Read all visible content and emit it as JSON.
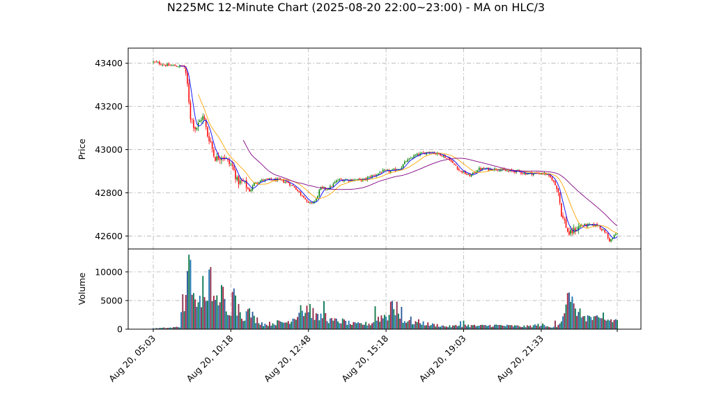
{
  "chart_data": {
    "type": "candlestick",
    "title": "N225MC 12-Minute Chart (2025-08-20 22:00~23:00) - MA on HLC/3",
    "price_panel": {
      "ylabel": "Price",
      "ylim": [
        42540,
        43470
      ],
      "yticks": [
        42600,
        42800,
        43000,
        43200,
        43400
      ],
      "grid": true
    },
    "volume_panel": {
      "ylabel": "Volume",
      "ylim": [
        0,
        14000
      ],
      "yticks": [
        0,
        5000,
        10000
      ],
      "grid": true
    },
    "xaxis": {
      "bar_count": 300,
      "tick_labels": [
        {
          "index": 0,
          "label": "Aug 20, 05:03"
        },
        {
          "index": 50,
          "label": "Aug 20, 10:18"
        },
        {
          "index": 100,
          "label": "Aug 20, 12:48"
        },
        {
          "index": 150,
          "label": "Aug 20, 15:18"
        },
        {
          "index": 200,
          "label": "Aug 20, 19:03"
        },
        {
          "index": 250,
          "label": "Aug 20, 21:33"
        }
      ]
    },
    "up_color": "#008000",
    "down_color": "#ff0000",
    "price_anchors": [
      [
        0,
        43405
      ],
      [
        10,
        43390
      ],
      [
        20,
        43385
      ],
      [
        22,
        43300
      ],
      [
        24,
        43150
      ],
      [
        27,
        43100
      ],
      [
        32,
        43150
      ],
      [
        36,
        43050
      ],
      [
        40,
        42960
      ],
      [
        45,
        42970
      ],
      [
        50,
        42930
      ],
      [
        55,
        42850
      ],
      [
        58,
        42850
      ],
      [
        62,
        42810
      ],
      [
        66,
        42850
      ],
      [
        72,
        42860
      ],
      [
        80,
        42860
      ],
      [
        86,
        42850
      ],
      [
        90,
        42830
      ],
      [
        96,
        42790
      ],
      [
        100,
        42750
      ],
      [
        104,
        42760
      ],
      [
        108,
        42820
      ],
      [
        112,
        42820
      ],
      [
        120,
        42860
      ],
      [
        128,
        42860
      ],
      [
        135,
        42860
      ],
      [
        142,
        42880
      ],
      [
        148,
        42900
      ],
      [
        152,
        42900
      ],
      [
        158,
        42910
      ],
      [
        164,
        42950
      ],
      [
        168,
        42970
      ],
      [
        172,
        42980
      ],
      [
        178,
        42990
      ],
      [
        184,
        42980
      ],
      [
        190,
        42960
      ],
      [
        194,
        42930
      ],
      [
        198,
        42900
      ],
      [
        204,
        42880
      ],
      [
        210,
        42910
      ],
      [
        216,
        42910
      ],
      [
        222,
        42910
      ],
      [
        228,
        42900
      ],
      [
        234,
        42900
      ],
      [
        240,
        42890
      ],
      [
        246,
        42890
      ],
      [
        252,
        42890
      ],
      [
        256,
        42870
      ],
      [
        260,
        42830
      ],
      [
        264,
        42680
      ],
      [
        268,
        42610
      ],
      [
        272,
        42630
      ],
      [
        276,
        42650
      ],
      [
        280,
        42650
      ],
      [
        286,
        42650
      ],
      [
        291,
        42620
      ],
      [
        294,
        42580
      ],
      [
        299,
        42610
      ]
    ],
    "volume_anchors": [
      [
        0,
        150
      ],
      [
        10,
        250
      ],
      [
        17,
        400
      ],
      [
        19,
        6100
      ],
      [
        21,
        4800
      ],
      [
        23,
        11000
      ],
      [
        25,
        6000
      ],
      [
        28,
        5200
      ],
      [
        30,
        4800
      ],
      [
        33,
        8000
      ],
      [
        35,
        5000
      ],
      [
        37,
        8500
      ],
      [
        39,
        5000
      ],
      [
        42,
        4800
      ],
      [
        44,
        7200
      ],
      [
        46,
        4500
      ],
      [
        50,
        4000
      ],
      [
        52,
        6500
      ],
      [
        54,
        3500
      ],
      [
        58,
        2500
      ],
      [
        62,
        3000
      ],
      [
        66,
        1800
      ],
      [
        72,
        900
      ],
      [
        80,
        1200
      ],
      [
        86,
        1300
      ],
      [
        90,
        2000
      ],
      [
        95,
        3500
      ],
      [
        100,
        2800
      ],
      [
        103,
        3000
      ],
      [
        106,
        2000
      ],
      [
        110,
        2500
      ],
      [
        115,
        1500
      ],
      [
        120,
        1500
      ],
      [
        130,
        900
      ],
      [
        140,
        1000
      ],
      [
        145,
        2000
      ],
      [
        150,
        2500
      ],
      [
        154,
        2200
      ],
      [
        157,
        3000
      ],
      [
        160,
        1800
      ],
      [
        165,
        1200
      ],
      [
        170,
        1300
      ],
      [
        180,
        800
      ],
      [
        190,
        500
      ],
      [
        200,
        700
      ],
      [
        210,
        600
      ],
      [
        220,
        700
      ],
      [
        230,
        600
      ],
      [
        240,
        500
      ],
      [
        250,
        800
      ],
      [
        255,
        400
      ],
      [
        260,
        600
      ],
      [
        264,
        2000
      ],
      [
        268,
        4000
      ],
      [
        272,
        3800
      ],
      [
        276,
        2500
      ],
      [
        280,
        2200
      ],
      [
        285,
        1800
      ],
      [
        290,
        1700
      ],
      [
        299,
        1600
      ]
    ],
    "volume_spikes": [
      [
        19,
        6100
      ],
      [
        23,
        13000
      ],
      [
        24,
        12100
      ],
      [
        25,
        6000
      ],
      [
        27,
        5200
      ],
      [
        29,
        4700
      ],
      [
        32,
        9300
      ],
      [
        34,
        4900
      ],
      [
        36,
        10400
      ],
      [
        38,
        4900
      ],
      [
        40,
        5100
      ],
      [
        43,
        4700
      ],
      [
        44,
        7700
      ],
      [
        45,
        7400
      ],
      [
        51,
        6500
      ],
      [
        52,
        7100
      ],
      [
        55,
        4400
      ],
      [
        61,
        3500
      ],
      [
        95,
        4200
      ],
      [
        99,
        4100
      ],
      [
        101,
        4400
      ],
      [
        110,
        4900
      ],
      [
        143,
        4000
      ],
      [
        153,
        4800
      ],
      [
        154,
        4900
      ],
      [
        155,
        3500
      ],
      [
        157,
        4800
      ],
      [
        160,
        3900
      ],
      [
        166,
        2200
      ],
      [
        198,
        1400
      ],
      [
        200,
        1500
      ],
      [
        259,
        1500
      ],
      [
        266,
        4300
      ],
      [
        267,
        6300
      ],
      [
        268,
        6400
      ],
      [
        270,
        5700
      ],
      [
        272,
        3600
      ],
      [
        278,
        2300
      ],
      [
        290,
        2900
      ]
    ],
    "series": [
      {
        "type": "ma",
        "color": "#0000ff",
        "window": 5,
        "start": 17
      },
      {
        "type": "ma",
        "color": "#ffa500",
        "window": 14,
        "start": 29
      },
      {
        "type": "ma",
        "color": "#800080",
        "window": 40,
        "start": 58
      }
    ]
  }
}
